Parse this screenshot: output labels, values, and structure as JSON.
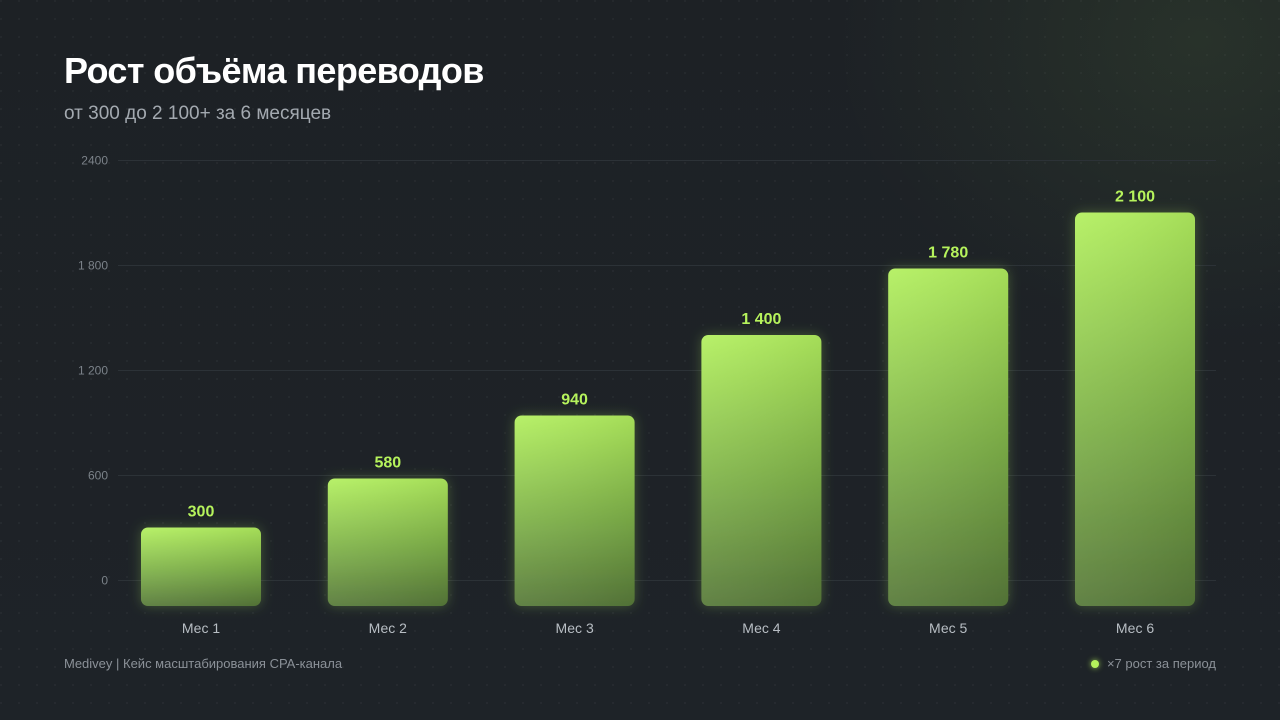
{
  "header": {
    "title": "Рост объёма переводов",
    "subtitle": "от 300 до 2 100+ за 6 месяцев"
  },
  "footer": {
    "source": "Medivey | Кейс масштабирования CPA-канала",
    "note": "×7 рост за период"
  },
  "colors": {
    "background": "#1c2024",
    "accent": "#b6f35c",
    "bar_top": "#b3f05f",
    "bar_bottom": "#587a3a",
    "grid": "#2c3237",
    "tick_text": "#7b8289",
    "category_text": "#b8bec4"
  },
  "chart_data": {
    "type": "bar",
    "categories": [
      "Мес 1",
      "Мес 2",
      "Мес 3",
      "Мес 4",
      "Мес 5",
      "Мес 6"
    ],
    "values": [
      300,
      580,
      940,
      1400,
      1780,
      2100
    ],
    "value_labels": [
      "300",
      "580",
      "940",
      "1 400",
      "1 780",
      "2 100"
    ],
    "title": "Рост объёма переводов",
    "subtitle": "от 300 до 2 100+ за 6 месяцев",
    "xlabel": "",
    "ylabel": "",
    "yticks": [
      0,
      600,
      1200,
      1800,
      2400
    ],
    "ytick_labels": [
      "0",
      "600",
      "1 200",
      "1 800",
      "2400"
    ],
    "ylim": [
      0,
      2400
    ],
    "grid": true,
    "legend": "none"
  }
}
